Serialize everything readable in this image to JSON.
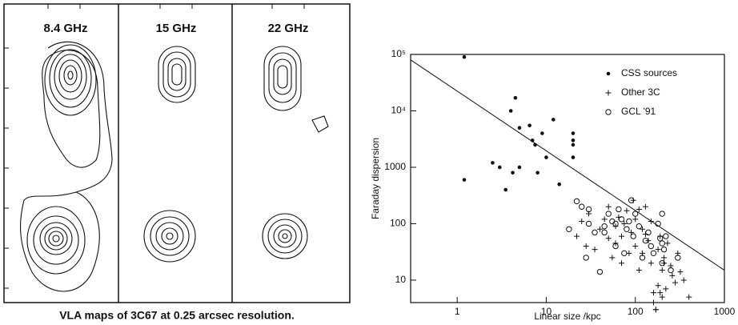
{
  "maps": {
    "panels": [
      "8.4 GHz",
      "15 GHz",
      "22 GHz"
    ],
    "caption": "VLA maps of 3C67 at 0.25 arcsec resolution."
  },
  "chart_data": {
    "type": "scatter",
    "x_label": "Linear size /kpc",
    "y_label": "Faraday dispersion",
    "log_x": true,
    "log_y": true,
    "legend": "upper right",
    "xlim": [
      0.3,
      1000
    ],
    "xticks": [
      1,
      10,
      100,
      1000
    ],
    "ylim": [
      4,
      100000
    ],
    "yticks": [
      {
        "value": 100000,
        "label": "10⁵"
      },
      {
        "value": 10000,
        "label": "10⁴"
      },
      1000,
      100,
      10
    ],
    "series": [
      {
        "name": "CSS sources",
        "marker": "dot",
        "color": "#111",
        "x": [
          1.2,
          1.2,
          2.5,
          3,
          3.5,
          4,
          4.5,
          4.2,
          5,
          5,
          6.5,
          7,
          7.5,
          8,
          9,
          10,
          12,
          14,
          20,
          20,
          20,
          20
        ],
        "values": [
          90000,
          600,
          1200,
          1000,
          400,
          10000,
          17000,
          800,
          5000,
          1000,
          5500,
          3000,
          2500,
          800,
          4000,
          1500,
          7000,
          500,
          4000,
          3000,
          2500,
          1500
        ]
      },
      {
        "name": "Other 3C",
        "marker": "plus",
        "color": "#111",
        "x": [
          22,
          25,
          28,
          30,
          35,
          40,
          45,
          50,
          50,
          55,
          60,
          60,
          65,
          70,
          70,
          75,
          80,
          85,
          90,
          95,
          100,
          100,
          110,
          120,
          120,
          130,
          140,
          150,
          150,
          160,
          170,
          180,
          180,
          190,
          200,
          200,
          210,
          220,
          230,
          250,
          260,
          280,
          300,
          320,
          350,
          400,
          160,
          170,
          190,
          210,
          130,
          110
        ],
        "values": [
          60,
          110,
          40,
          150,
          35,
          80,
          120,
          55,
          200,
          25,
          90,
          45,
          130,
          60,
          20,
          100,
          170,
          30,
          70,
          260,
          120,
          40,
          15,
          80,
          30,
          200,
          50,
          20,
          110,
          6,
          3,
          8,
          35,
          60,
          15,
          5,
          25,
          7,
          45,
          18,
          12,
          9,
          30,
          14,
          10,
          5,
          4,
          3,
          6,
          20,
          65,
          180
        ]
      },
      {
        "name": "GCL '91",
        "marker": "circle",
        "color": "#111",
        "x": [
          18,
          22,
          25,
          28,
          30,
          35,
          40,
          45,
          50,
          55,
          60,
          60,
          65,
          70,
          75,
          80,
          85,
          90,
          95,
          100,
          110,
          120,
          130,
          140,
          150,
          160,
          180,
          190,
          200,
          200,
          210,
          220,
          250,
          300,
          45,
          30,
          200
        ],
        "values": [
          80,
          250,
          200,
          25,
          100,
          70,
          14,
          90,
          150,
          110,
          100,
          40,
          180,
          120,
          30,
          80,
          110,
          260,
          60,
          150,
          90,
          25,
          50,
          70,
          40,
          30,
          100,
          55,
          150,
          20,
          35,
          60,
          15,
          25,
          70,
          180,
          45
        ]
      }
    ],
    "fit": {
      "x": [
        0.3,
        1000
      ],
      "values": [
        80000,
        15
      ]
    }
  }
}
